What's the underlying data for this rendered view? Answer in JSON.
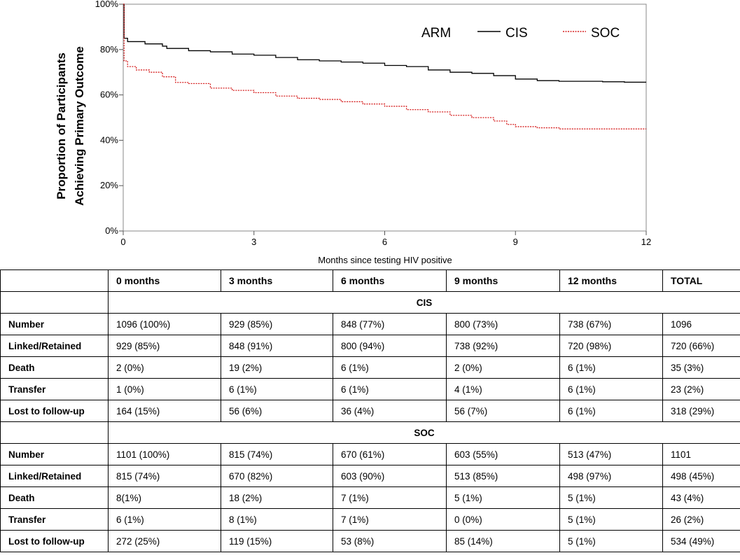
{
  "chart_data": {
    "type": "line",
    "title": "",
    "xlabel": "Months since testing HIV positive",
    "ylabel_lines": [
      "Proportion of Participants",
      "Achieving Primary Outcome"
    ],
    "xlim": [
      0,
      12
    ],
    "ylim": [
      0,
      100
    ],
    "x_ticks": [
      "0",
      "3",
      "6",
      "9",
      "12"
    ],
    "y_ticks": [
      "0%",
      "20%",
      "40%",
      "60%",
      "80%",
      "100%"
    ],
    "legend": {
      "title": "ARM",
      "position": "top-right"
    },
    "grid": false,
    "series": [
      {
        "name": "CIS",
        "color": "#000000",
        "style": "solid",
        "points": [
          [
            0,
            100
          ],
          [
            0.02,
            85
          ],
          [
            0.1,
            83.5
          ],
          [
            0.5,
            82.5
          ],
          [
            0.9,
            81.5
          ],
          [
            1.0,
            80.5
          ],
          [
            1.5,
            79.5
          ],
          [
            2.0,
            79
          ],
          [
            2.5,
            78
          ],
          [
            3.0,
            77.5
          ],
          [
            3.5,
            76.5
          ],
          [
            4.0,
            75.5
          ],
          [
            4.5,
            75
          ],
          [
            5.0,
            74.5
          ],
          [
            5.5,
            74
          ],
          [
            6.0,
            73
          ],
          [
            6.5,
            72.5
          ],
          [
            7.0,
            71
          ],
          [
            7.5,
            70
          ],
          [
            8.0,
            69.5
          ],
          [
            8.5,
            68.5
          ],
          [
            9.0,
            67
          ],
          [
            9.5,
            66.3
          ],
          [
            10.0,
            66
          ],
          [
            10.5,
            66
          ],
          [
            11.0,
            65.8
          ],
          [
            11.5,
            65.6
          ],
          [
            12.0,
            65.6
          ]
        ]
      },
      {
        "name": "SOC",
        "color": "#d62020",
        "style": "dotted",
        "points": [
          [
            0,
            100
          ],
          [
            0.02,
            75
          ],
          [
            0.1,
            72.5
          ],
          [
            0.3,
            71
          ],
          [
            0.6,
            70
          ],
          [
            0.9,
            68
          ],
          [
            1.2,
            65.5
          ],
          [
            1.5,
            65
          ],
          [
            2.0,
            63
          ],
          [
            2.5,
            62
          ],
          [
            3.0,
            61
          ],
          [
            3.5,
            59.5
          ],
          [
            4.0,
            58.5
          ],
          [
            4.5,
            58
          ],
          [
            5.0,
            57
          ],
          [
            5.5,
            56
          ],
          [
            6.0,
            55
          ],
          [
            6.5,
            53.5
          ],
          [
            7.0,
            52.5
          ],
          [
            7.5,
            51
          ],
          [
            8.0,
            50
          ],
          [
            8.5,
            48.5
          ],
          [
            8.8,
            47
          ],
          [
            9.0,
            46
          ],
          [
            9.5,
            45.5
          ],
          [
            10.0,
            45
          ],
          [
            10.5,
            45
          ],
          [
            11.0,
            45
          ],
          [
            11.5,
            45
          ],
          [
            12.0,
            45
          ]
        ]
      }
    ]
  },
  "table": {
    "headers": [
      "",
      "0 months",
      "3 months",
      "6 months",
      "9 months",
      "12 months",
      "TOTAL"
    ],
    "groups": [
      {
        "name": "CIS",
        "rows": [
          {
            "label": "Number",
            "cells": [
              "1096 (100%)",
              "929 (85%)",
              "848 (77%)",
              "800 (73%)",
              "738 (67%)",
              "1096"
            ]
          },
          {
            "label": "Linked/Retained",
            "cells": [
              "929 (85%)",
              "848 (91%)",
              "800 (94%)",
              "738 (92%)",
              "720 (98%)",
              "720 (66%)"
            ]
          },
          {
            "label": "Death",
            "cells": [
              "2 (0%)",
              "19 (2%)",
              "6 (1%)",
              "2 (0%)",
              "6 (1%)",
              "35 (3%)"
            ]
          },
          {
            "label": "Transfer",
            "cells": [
              "1 (0%)",
              "6 (1%)",
              "6 (1%)",
              "4 (1%)",
              "6 (1%)",
              "23 (2%)"
            ]
          },
          {
            "label": "Lost to follow-up",
            "cells": [
              "164 (15%)",
              "56 (6%)",
              "36 (4%)",
              "56 (7%)",
              "6 (1%)",
              "318 (29%)"
            ]
          }
        ]
      },
      {
        "name": "SOC",
        "rows": [
          {
            "label": "Number",
            "cells": [
              "1101 (100%)",
              "815 (74%)",
              "670 (61%)",
              "603 (55%)",
              "513 (47%)",
              "1101"
            ]
          },
          {
            "label": "Linked/Retained",
            "cells": [
              "815 (74%)",
              "670 (82%)",
              "603 (90%)",
              "513 (85%)",
              "498 (97%)",
              "498 (45%)"
            ]
          },
          {
            "label": "Death",
            "cells": [
              "8(1%)",
              "18 (2%)",
              "7 (1%)",
              "5 (1%)",
              "5 (1%)",
              "43 (4%)"
            ]
          },
          {
            "label": "Transfer",
            "cells": [
              "6 (1%)",
              "8 (1%)",
              "7 (1%)",
              "0 (0%)",
              "5 (1%)",
              "26 (2%)"
            ]
          },
          {
            "label": "Lost to follow-up",
            "cells": [
              "272 (25%)",
              "119 (15%)",
              "53 (8%)",
              "85 (14%)",
              "5 (1%)",
              "534 (49%)"
            ]
          }
        ]
      }
    ]
  }
}
